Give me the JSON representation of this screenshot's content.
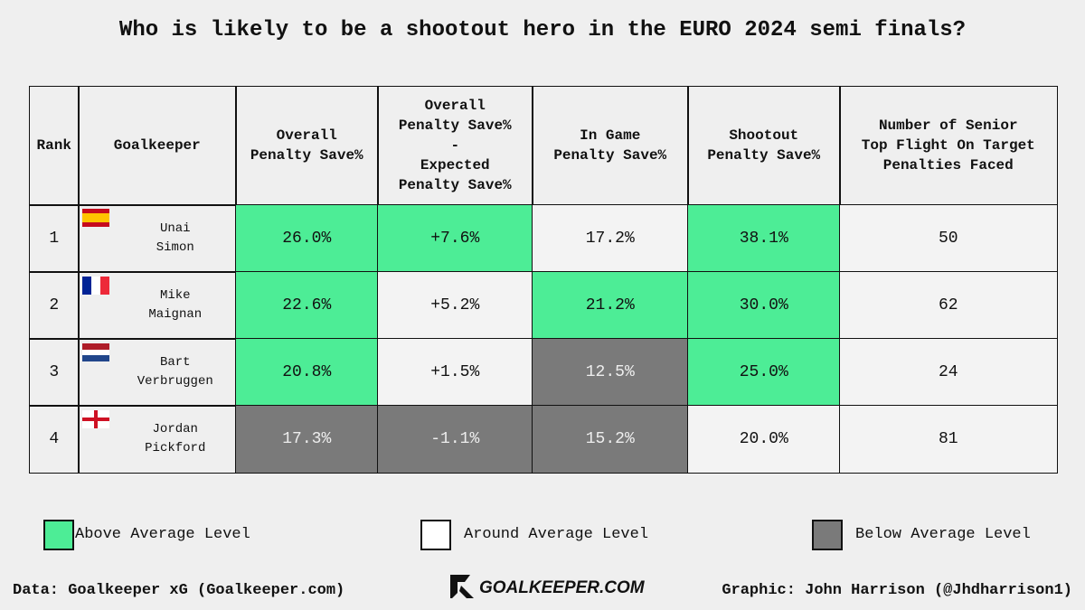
{
  "title": "Who is likely to be a shootout hero in the EURO 2024 semi finals?",
  "table": {
    "header": [
      "Rank",
      "Goalkeeper",
      "Overall\nPenalty Save%",
      "Overall\nPenalty Save%\n-\nExpected\nPenalty Save%",
      "In Game\nPenalty Save%",
      "Shootout\nPenalty Save%",
      "Number of Senior\nTop Flight On Target\nPenalties Faced"
    ],
    "rows": [
      {
        "rank": 1,
        "goalkeeper": "Unai\nSimon",
        "cells": [
          {
            "text": "26.0%",
            "color": "#4ded96"
          },
          {
            "text": "+7.6%",
            "color": "#4ded96"
          },
          {
            "text": "17.2%",
            "color": "#f3f3f3"
          },
          {
            "text": "38.1%",
            "color": "#4ded96"
          },
          {
            "text": "50",
            "color": "#f3f3f3"
          }
        ]
      },
      {
        "rank": 2,
        "goalkeeper": "Mike\nMaignan",
        "cells": [
          {
            "text": "22.6%",
            "color": "#4ded96"
          },
          {
            "text": "+5.2%",
            "color": "#f3f3f3"
          },
          {
            "text": "21.2%",
            "color": "#4ded96"
          },
          {
            "text": "30.0%",
            "color": "#4ded96"
          },
          {
            "text": "62",
            "color": "#f3f3f3"
          }
        ]
      },
      {
        "rank": 3,
        "goalkeeper": "Bart\nVerbruggen",
        "cells": [
          {
            "text": "20.8%",
            "color": "#4ded96"
          },
          {
            "text": "+1.5%",
            "color": "#f3f3f3"
          },
          {
            "text": "12.5%",
            "color": "#7a7a7a"
          },
          {
            "text": "25.0%",
            "color": "#4ded96"
          },
          {
            "text": "24",
            "color": "#f3f3f3"
          }
        ]
      },
      {
        "rank": 4,
        "goalkeeper": "Jordan\nPickford",
        "cells": [
          {
            "text": "17.3%",
            "color": "#7a7a7a"
          },
          {
            "text": "-1.1%",
            "color": "#7a7a7a"
          },
          {
            "text": "15.2%",
            "color": "#7a7a7a"
          },
          {
            "text": "20.0%",
            "color": "#f3f3f3"
          },
          {
            "text": "81",
            "color": "#f3f3f3"
          }
        ]
      }
    ]
  },
  "legend": [
    {
      "label": "Above Average Level",
      "color": "#4ded96"
    },
    {
      "label": "Around Average Level",
      "color": "#ffffff"
    },
    {
      "label": "Below Average Level",
      "color": "#7a7a7a"
    }
  ],
  "footer": {
    "source": "Data: Goalkeeper xG (Goalkeeper.com)",
    "logo": "GOALKEEPER.COM",
    "credit": "Graphic: John Harrison (@Jhdharrison1)"
  }
}
